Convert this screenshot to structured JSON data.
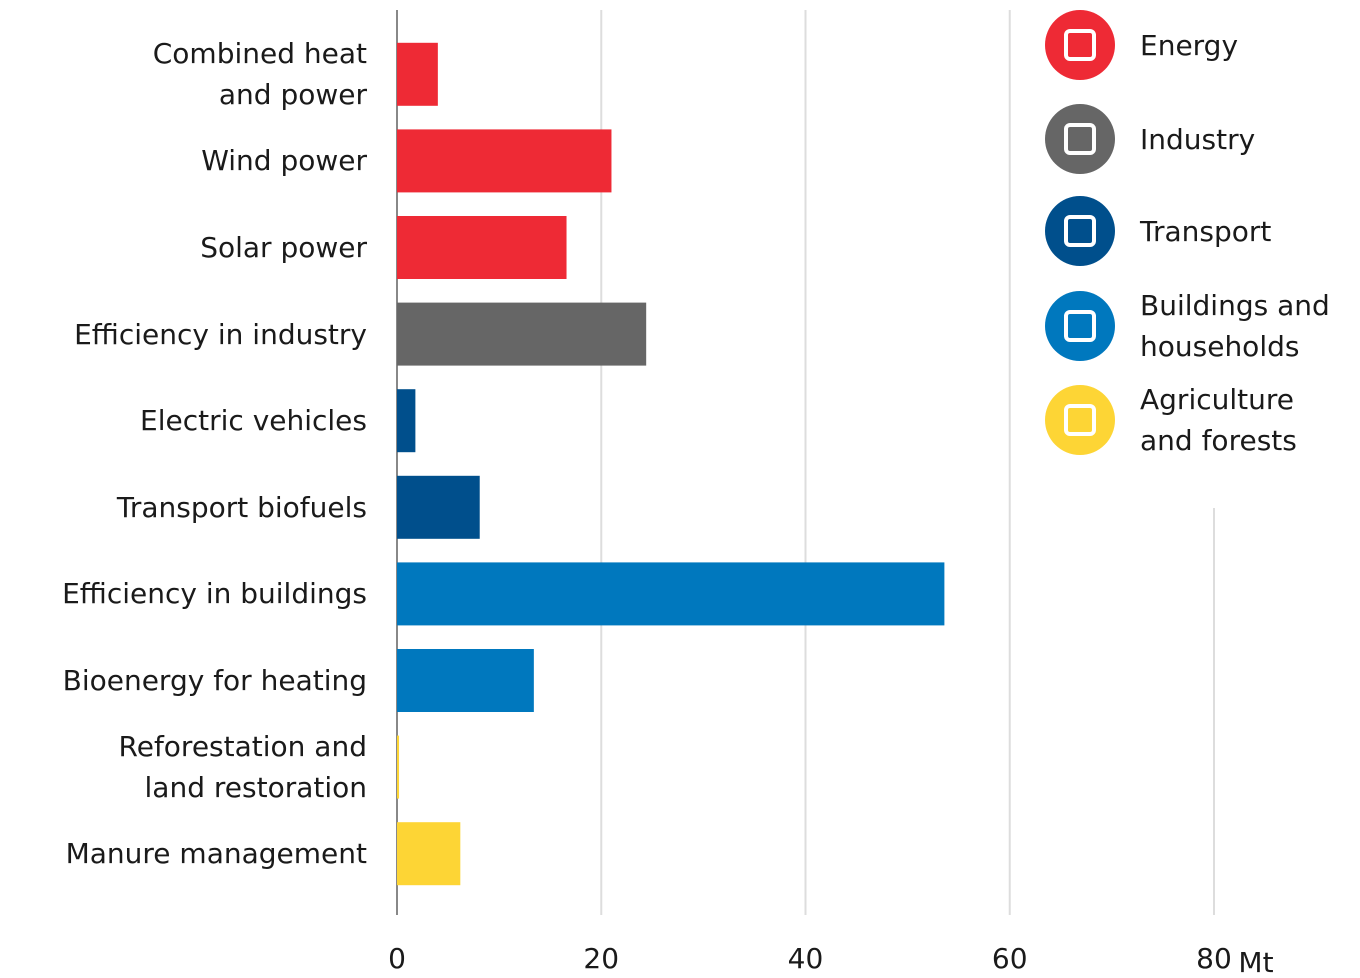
{
  "chart_data": {
    "type": "bar",
    "orientation": "horizontal",
    "categories": [
      "Combined heat\nand power",
      "Wind power",
      "Solar power",
      "Efficiency in industry",
      "Electric vehicles",
      "Transport biofuels",
      "Efficiency in buildings",
      "Bioenergy for heating",
      "Reforestation and\nland restoration",
      "Manure management"
    ],
    "values": [
      4,
      21,
      16.6,
      24.4,
      1.8,
      8.1,
      53.6,
      13.4,
      0.2,
      6.2
    ],
    "colors": [
      "#ee2a35",
      "#ee2a35",
      "#ee2a35",
      "#666666",
      "#004f8c",
      "#004f8c",
      "#0078be",
      "#0078be",
      "#fdd535",
      "#fdd535"
    ],
    "legend": [
      {
        "name": "Energy",
        "color": "#ee2a35"
      },
      {
        "name": "Industry",
        "color": "#666666"
      },
      {
        "name": "Transport",
        "color": "#004f8c"
      },
      {
        "name": "Buildings and\nhouseholds",
        "color": "#0078be"
      },
      {
        "name": "Agriculture\nand forests",
        "color": "#fdd535"
      }
    ],
    "xlabel": "Mt",
    "xlim": [
      0,
      80
    ],
    "xticks": [
      0,
      20,
      40,
      60,
      80
    ],
    "grid": true
  }
}
